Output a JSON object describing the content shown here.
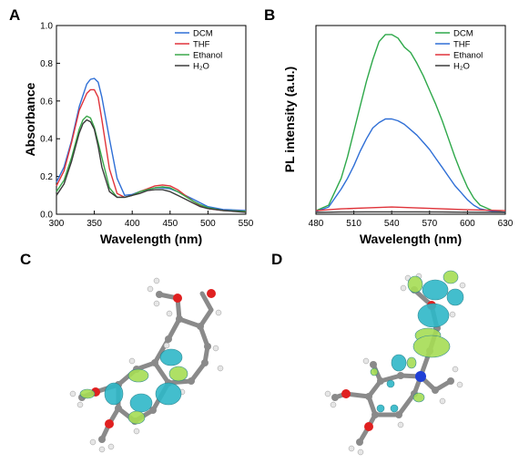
{
  "panels": {
    "a": "A",
    "b": "B",
    "c": "C",
    "d": "D"
  },
  "colors": {
    "DCM_A": "#2f6fd6",
    "THF_A": "#e0333a",
    "Ethanol_A": "#3aa84a",
    "H2O": "#3a3a3a",
    "DCM_B": "#2ea84a",
    "THF_B": "#2f6fd6",
    "Ethanol_B": "#e0333a",
    "lobe_cyan": "#2fb8c8",
    "lobe_green": "#a6dd55",
    "carbon": "#8a8a8a",
    "oxygen": "#e02020",
    "nitrogen": "#1f3fd6",
    "hydrogen": "#e6e6e6"
  },
  "chart_data": [
    {
      "type": "line",
      "panel": "A",
      "xlabel": "Wavelength (nm)",
      "ylabel": "Absorbance",
      "xlim": [
        300,
        550
      ],
      "ylim": [
        0.0,
        1.0
      ],
      "xticks": [
        "300",
        "350",
        "400",
        "450",
        "500",
        "550"
      ],
      "yticks": [
        "0.0",
        "0.2",
        "0.4",
        "0.6",
        "0.8",
        "1.0"
      ],
      "legend_position": "top-right",
      "series": [
        {
          "name": "DCM",
          "x": [
            300,
            310,
            320,
            330,
            340,
            345,
            350,
            355,
            360,
            370,
            380,
            390,
            400,
            410,
            420,
            430,
            440,
            450,
            460,
            470,
            480,
            490,
            500,
            520,
            550
          ],
          "y": [
            0.17,
            0.25,
            0.39,
            0.57,
            0.69,
            0.715,
            0.72,
            0.7,
            0.62,
            0.4,
            0.19,
            0.1,
            0.105,
            0.12,
            0.13,
            0.14,
            0.14,
            0.135,
            0.12,
            0.1,
            0.08,
            0.06,
            0.04,
            0.025,
            0.02
          ]
        },
        {
          "name": "THF",
          "x": [
            300,
            310,
            320,
            330,
            340,
            345,
            350,
            355,
            360,
            370,
            380,
            390,
            400,
            410,
            420,
            430,
            440,
            450,
            460,
            470,
            480,
            490,
            500,
            520,
            550
          ],
          "y": [
            0.15,
            0.23,
            0.38,
            0.55,
            0.64,
            0.66,
            0.66,
            0.62,
            0.5,
            0.24,
            0.11,
            0.09,
            0.1,
            0.12,
            0.135,
            0.15,
            0.155,
            0.15,
            0.13,
            0.1,
            0.07,
            0.045,
            0.03,
            0.02,
            0.015
          ]
        },
        {
          "name": "Ethanol",
          "x": [
            300,
            310,
            320,
            330,
            335,
            340,
            345,
            350,
            355,
            360,
            370,
            380,
            390,
            400,
            410,
            420,
            430,
            440,
            450,
            460,
            470,
            480,
            490,
            500,
            520,
            550
          ],
          "y": [
            0.12,
            0.18,
            0.3,
            0.45,
            0.5,
            0.52,
            0.51,
            0.46,
            0.38,
            0.3,
            0.14,
            0.09,
            0.09,
            0.1,
            0.12,
            0.13,
            0.14,
            0.145,
            0.14,
            0.12,
            0.095,
            0.07,
            0.05,
            0.035,
            0.02,
            0.015
          ]
        },
        {
          "name": "H₂O",
          "x": [
            300,
            310,
            320,
            330,
            335,
            340,
            345,
            350,
            355,
            360,
            370,
            380,
            390,
            400,
            410,
            420,
            430,
            440,
            450,
            460,
            470,
            480,
            490,
            500,
            520,
            550
          ],
          "y": [
            0.1,
            0.16,
            0.28,
            0.43,
            0.48,
            0.5,
            0.49,
            0.45,
            0.36,
            0.25,
            0.12,
            0.09,
            0.09,
            0.1,
            0.11,
            0.125,
            0.13,
            0.13,
            0.12,
            0.1,
            0.08,
            0.06,
            0.04,
            0.03,
            0.02,
            0.01
          ]
        }
      ]
    },
    {
      "type": "line",
      "panel": "B",
      "xlabel": "Wavelength (nm)",
      "ylabel": "PL intensity (a.u.)",
      "xlim": [
        480,
        630
      ],
      "ylim": [
        0,
        1.05
      ],
      "xticks": [
        "480",
        "510",
        "540",
        "570",
        "600",
        "630"
      ],
      "yticks": [],
      "legend_position": "top-right",
      "series": [
        {
          "name": "DCM",
          "x": [
            480,
            490,
            500,
            505,
            510,
            515,
            520,
            525,
            530,
            535,
            540,
            545,
            550,
            555,
            560,
            565,
            570,
            575,
            580,
            585,
            590,
            595,
            600,
            605,
            610,
            620,
            630
          ],
          "y": [
            0.02,
            0.05,
            0.2,
            0.32,
            0.46,
            0.6,
            0.74,
            0.86,
            0.96,
            1.0,
            1.0,
            0.98,
            0.93,
            0.9,
            0.84,
            0.77,
            0.69,
            0.61,
            0.52,
            0.42,
            0.32,
            0.23,
            0.15,
            0.09,
            0.05,
            0.02,
            0.01
          ]
        },
        {
          "name": "THF",
          "x": [
            480,
            490,
            500,
            505,
            510,
            515,
            520,
            525,
            530,
            535,
            540,
            545,
            550,
            555,
            560,
            565,
            570,
            575,
            580,
            585,
            590,
            595,
            600,
            605,
            610,
            620,
            630
          ],
          "y": [
            0.015,
            0.04,
            0.14,
            0.2,
            0.27,
            0.35,
            0.42,
            0.48,
            0.51,
            0.53,
            0.53,
            0.52,
            0.5,
            0.47,
            0.44,
            0.4,
            0.36,
            0.31,
            0.26,
            0.21,
            0.16,
            0.12,
            0.08,
            0.05,
            0.03,
            0.015,
            0.01
          ]
        },
        {
          "name": "Ethanol",
          "x": [
            480,
            500,
            520,
            540,
            560,
            580,
            600,
            630
          ],
          "y": [
            0.02,
            0.03,
            0.035,
            0.04,
            0.035,
            0.03,
            0.025,
            0.02
          ]
        },
        {
          "name": "H₂O",
          "x": [
            480,
            500,
            520,
            540,
            560,
            580,
            600,
            630
          ],
          "y": [
            0.01,
            0.012,
            0.013,
            0.013,
            0.013,
            0.012,
            0.011,
            0.01
          ]
        }
      ]
    }
  ]
}
